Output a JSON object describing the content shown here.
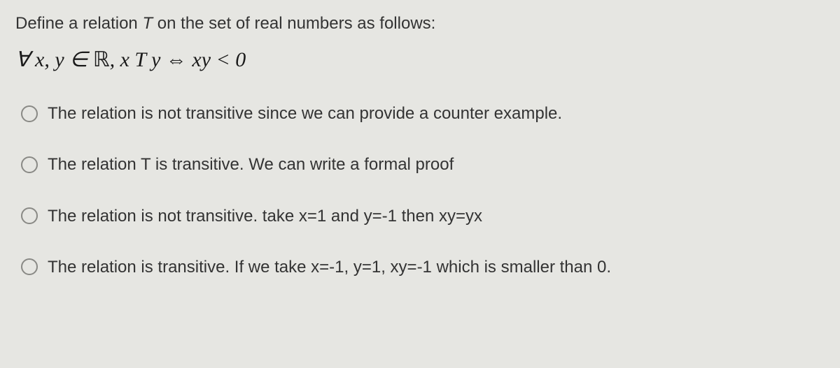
{
  "question": {
    "intro_prefix": "Define a relation ",
    "intro_var": "T ",
    "intro_suffix": "on the set of real numbers as follows:",
    "formula_html": "∀ <i>x</i>, <i>y</i> ∈ <span class='bb'>ℝ</span>, <i>x</i> T <i>y</i> ⇔ <i>xy</i> < 0"
  },
  "options": [
    {
      "label": "The relation is not transitive since we can provide a counter example."
    },
    {
      "label": "The relation T is transitive. We can write a formal proof"
    },
    {
      "label": "The relation is not transitive. take x=1 and y=-1 then xy=yx"
    },
    {
      "label": "The relation is transitive. If we take x=-1, y=1, xy=-1 which is smaller than 0."
    }
  ],
  "styles": {
    "background_color": "#e8e8e4",
    "text_color": "#333333",
    "radio_border_color": "#8a8a86",
    "question_fontsize": 24,
    "formula_fontsize": 30,
    "option_fontsize": 24
  }
}
